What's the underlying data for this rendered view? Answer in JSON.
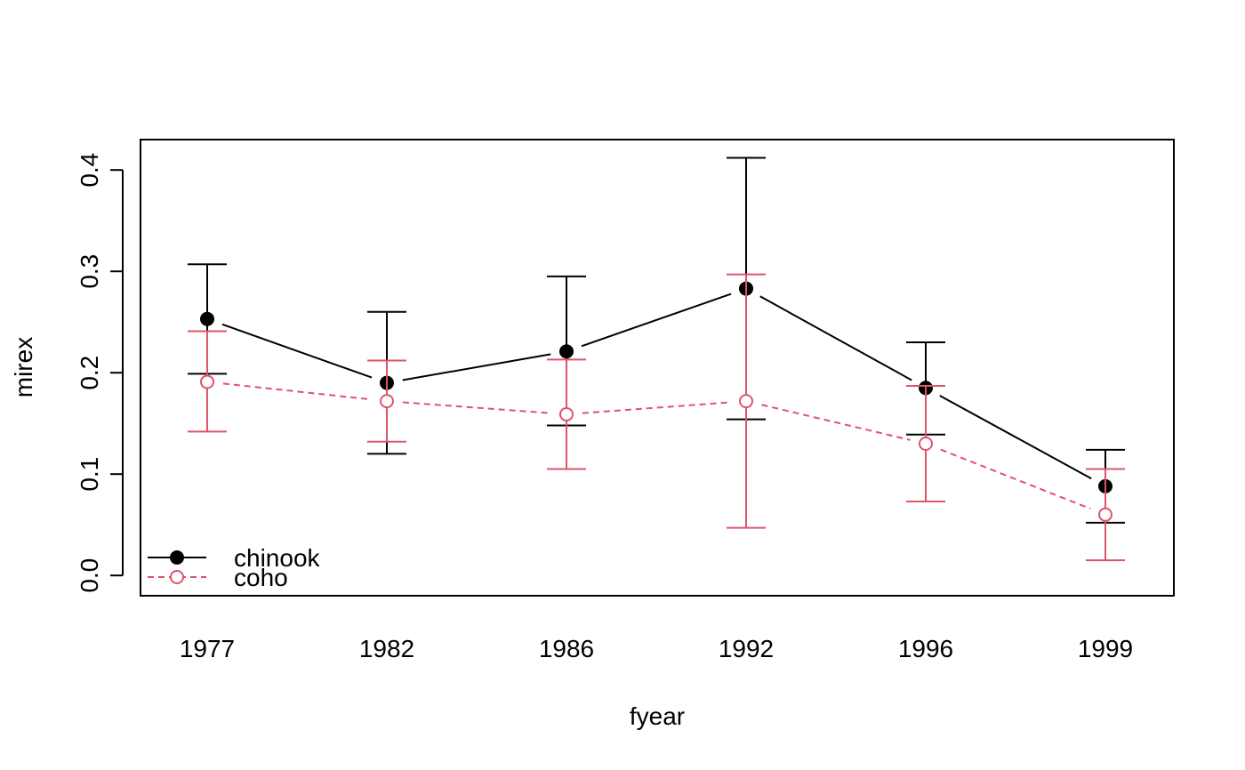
{
  "chart_data": {
    "type": "line",
    "title": "",
    "xlabel": "fyear",
    "ylabel": "mirex",
    "categories": [
      "1977",
      "1982",
      "1986",
      "1992",
      "1996",
      "1999"
    ],
    "ylim": [
      -0.02,
      0.43
    ],
    "yticks": [
      0.0,
      0.1,
      0.2,
      0.3,
      0.4
    ],
    "ytick_labels": [
      "0.0",
      "0.1",
      "0.2",
      "0.3",
      "0.4"
    ],
    "grid": false,
    "legend_position": "bottom-left",
    "series": [
      {
        "name": "chinook",
        "color": "#000000",
        "line_style": "solid",
        "marker": "filled-circle",
        "values": [
          0.253,
          0.19,
          0.221,
          0.283,
          0.185,
          0.088
        ],
        "lower": [
          0.199,
          0.12,
          0.148,
          0.154,
          0.139,
          0.052
        ],
        "upper": [
          0.307,
          0.26,
          0.295,
          0.412,
          0.23,
          0.124
        ]
      },
      {
        "name": "coho",
        "color": "#DF536B",
        "line_style": "dashed",
        "marker": "open-circle",
        "values": [
          0.191,
          0.172,
          0.159,
          0.172,
          0.13,
          0.06
        ],
        "lower": [
          0.142,
          0.132,
          0.105,
          0.047,
          0.073,
          0.015
        ],
        "upper": [
          0.241,
          0.212,
          0.213,
          0.297,
          0.187,
          0.105
        ]
      }
    ]
  }
}
